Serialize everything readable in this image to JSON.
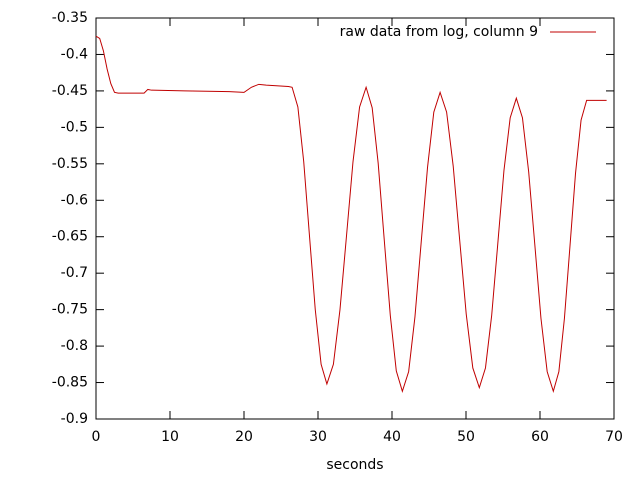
{
  "chart_data": {
    "type": "line",
    "xlabel": "seconds",
    "xlim": [
      0,
      70
    ],
    "xticks": [
      0,
      10,
      20,
      30,
      40,
      50,
      60,
      70
    ],
    "ylim": [
      -0.9,
      -0.35
    ],
    "yticks": [
      -0.35,
      -0.4,
      -0.45,
      -0.5,
      -0.55,
      -0.6,
      -0.65,
      -0.7,
      -0.75,
      -0.8,
      -0.85,
      -0.9
    ],
    "grid": false,
    "legend": "top-right",
    "x": [
      0,
      0.5,
      1,
      1.5,
      2,
      2.5,
      3,
      6.5,
      7,
      7.5,
      12,
      18,
      20,
      21,
      22,
      23,
      26,
      26.5,
      27.28,
      28.07,
      28.85,
      29.63,
      30.42,
      31.2,
      32.08,
      32.97,
      33.85,
      34.73,
      35.62,
      36.5,
      37.32,
      38.13,
      38.95,
      39.77,
      40.58,
      41.4,
      42.25,
      43.1,
      43.95,
      44.8,
      45.65,
      46.5,
      47.38,
      48.27,
      49.15,
      50.03,
      50.92,
      51.8,
      52.63,
      53.47,
      54.3,
      55.13,
      55.97,
      56.8,
      57.63,
      58.47,
      59.3,
      60.13,
      60.97,
      61.8,
      62.55,
      63.3,
      64.05,
      64.8,
      65.55,
      66.3,
      69
    ],
    "series": [
      {
        "name": "raw data from log, column 9",
        "color": "#c00000",
        "values": [
          -0.375,
          -0.378,
          -0.395,
          -0.42,
          -0.44,
          -0.452,
          -0.453,
          -0.453,
          -0.448,
          -0.449,
          -0.45,
          -0.451,
          -0.452,
          -0.445,
          -0.441,
          -0.442,
          -0.444,
          -0.445,
          -0.472,
          -0.547,
          -0.649,
          -0.75,
          -0.825,
          -0.852,
          -0.825,
          -0.75,
          -0.649,
          -0.547,
          -0.472,
          -0.445,
          -0.473,
          -0.549,
          -0.654,
          -0.758,
          -0.834,
          -0.862,
          -0.835,
          -0.76,
          -0.657,
          -0.555,
          -0.479,
          -0.452,
          -0.479,
          -0.553,
          -0.655,
          -0.756,
          -0.83,
          -0.857,
          -0.83,
          -0.758,
          -0.659,
          -0.559,
          -0.487,
          -0.46,
          -0.487,
          -0.561,
          -0.661,
          -0.762,
          -0.835,
          -0.862,
          -0.835,
          -0.762,
          -0.663,
          -0.563,
          -0.49,
          -0.463,
          -0.463
        ]
      }
    ]
  }
}
